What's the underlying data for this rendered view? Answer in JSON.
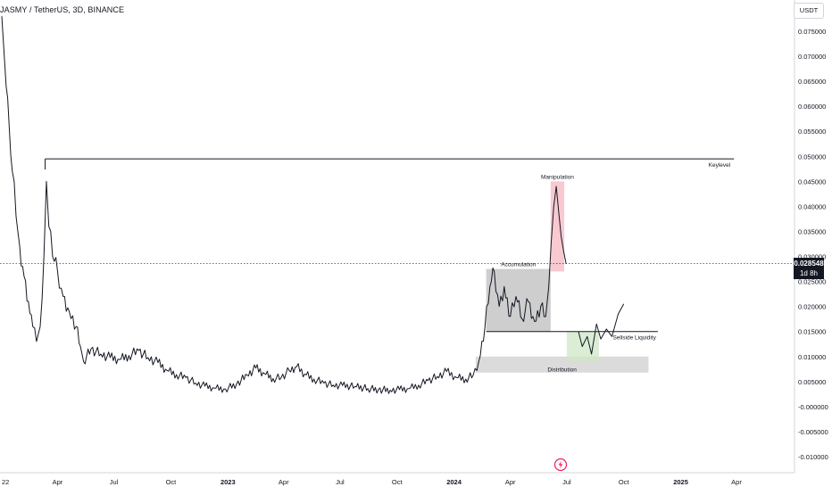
{
  "symbol_title": "JASMY / TetherUS, 3D, BINANCE",
  "currency_button": "USDT",
  "last_price": {
    "value": "0.028548",
    "countdown": "1d 8h"
  },
  "chart_data": {
    "type": "line",
    "title": "JASMY / TetherUS, 3D, BINANCE",
    "xlabel": "",
    "ylabel": "",
    "ylim": [
      -0.0115,
      0.08
    ],
    "y_ticks": [
      "0.075000",
      "0.070000",
      "0.065000",
      "0.060000",
      "0.055000",
      "0.050000",
      "0.045000",
      "0.040000",
      "0.035000",
      "0.030000",
      "0.025000",
      "0.020000",
      "0.015000",
      "0.010000",
      "0.005000",
      "-0.000000",
      "-0.005000",
      "-0.010000"
    ],
    "y_tick_values": [
      0.075,
      0.07,
      0.065,
      0.06,
      0.055,
      0.05,
      0.045,
      0.04,
      0.035,
      0.03,
      0.025,
      0.02,
      0.015,
      0.01,
      0.005,
      0,
      -0.005,
      -0.01
    ],
    "x_ticks": [
      "22",
      "Apr",
      "Jul",
      "Oct",
      "2023",
      "Apr",
      "Jul",
      "Oct",
      "2024",
      "Apr",
      "Jul",
      "Oct",
      "2025",
      "Apr"
    ],
    "x_tick_dates": [
      "2022-01-01",
      "2022-04-01",
      "2022-07-01",
      "2022-10-01",
      "2023-01-01",
      "2023-04-01",
      "2023-07-01",
      "2023-10-01",
      "2024-01-01",
      "2024-04-01",
      "2024-07-01",
      "2024-10-01",
      "2025-01-01",
      "2025-04-01"
    ],
    "series": [
      {
        "points": [
          [
            "2022-01-01",
            0.078
          ],
          [
            "2022-01-04",
            0.072
          ],
          [
            "2022-01-08",
            0.064
          ],
          [
            "2022-01-13",
            0.056
          ],
          [
            "2022-01-18",
            0.047
          ],
          [
            "2022-01-24",
            0.038
          ],
          [
            "2022-01-30",
            0.032
          ],
          [
            "2022-02-06",
            0.026
          ],
          [
            "2022-02-13",
            0.021
          ],
          [
            "2022-02-20",
            0.016
          ],
          [
            "2022-02-26",
            0.013
          ],
          [
            "2022-03-04",
            0.016
          ],
          [
            "2022-03-10",
            0.03
          ],
          [
            "2022-03-14",
            0.045
          ],
          [
            "2022-03-18",
            0.036
          ],
          [
            "2022-03-24",
            0.03
          ],
          [
            "2022-04-01",
            0.027
          ],
          [
            "2022-04-10",
            0.022
          ],
          [
            "2022-04-20",
            0.019
          ],
          [
            "2022-05-01",
            0.016
          ],
          [
            "2022-05-08",
            0.012
          ],
          [
            "2022-05-13",
            0.009
          ],
          [
            "2022-05-25",
            0.0115
          ],
          [
            "2022-06-10",
            0.0105
          ],
          [
            "2022-06-25",
            0.0098
          ],
          [
            "2022-07-10",
            0.0094
          ],
          [
            "2022-07-25",
            0.0102
          ],
          [
            "2022-08-10",
            0.0112
          ],
          [
            "2022-08-25",
            0.0098
          ],
          [
            "2022-09-10",
            0.0088
          ],
          [
            "2022-09-25",
            0.0072
          ],
          [
            "2022-10-10",
            0.0064
          ],
          [
            "2022-10-25",
            0.0058
          ],
          [
            "2022-11-10",
            0.0047
          ],
          [
            "2022-11-25",
            0.0041
          ],
          [
            "2022-12-10",
            0.0037
          ],
          [
            "2022-12-28",
            0.0035
          ],
          [
            "2023-01-15",
            0.0045
          ],
          [
            "2023-02-01",
            0.0063
          ],
          [
            "2023-02-15",
            0.0077
          ],
          [
            "2023-03-01",
            0.0066
          ],
          [
            "2023-03-15",
            0.0056
          ],
          [
            "2023-03-28",
            0.0058
          ],
          [
            "2023-04-10",
            0.0072
          ],
          [
            "2023-04-22",
            0.008
          ],
          [
            "2023-05-05",
            0.0065
          ],
          [
            "2023-05-20",
            0.0055
          ],
          [
            "2023-06-05",
            0.0047
          ],
          [
            "2023-06-20",
            0.0043
          ],
          [
            "2023-07-05",
            0.0042
          ],
          [
            "2023-07-25",
            0.004
          ],
          [
            "2023-08-15",
            0.0036
          ],
          [
            "2023-09-01",
            0.0034
          ],
          [
            "2023-09-20",
            0.0033
          ],
          [
            "2023-10-05",
            0.0034
          ],
          [
            "2023-10-20",
            0.0036
          ],
          [
            "2023-11-05",
            0.0043
          ],
          [
            "2023-11-20",
            0.0052
          ],
          [
            "2023-12-05",
            0.006
          ],
          [
            "2023-12-20",
            0.007
          ],
          [
            "2024-01-05",
            0.0058
          ],
          [
            "2024-01-20",
            0.0055
          ],
          [
            "2024-02-01",
            0.0063
          ],
          [
            "2024-02-10",
            0.009
          ],
          [
            "2024-02-20",
            0.016
          ],
          [
            "2024-02-28",
            0.024
          ],
          [
            "2024-03-06",
            0.027
          ],
          [
            "2024-03-14",
            0.02
          ],
          [
            "2024-03-22",
            0.024
          ],
          [
            "2024-04-01",
            0.018
          ],
          [
            "2024-04-10",
            0.022
          ],
          [
            "2024-04-20",
            0.0175
          ],
          [
            "2024-04-30",
            0.021
          ],
          [
            "2024-05-10",
            0.017
          ],
          [
            "2024-05-20",
            0.02
          ],
          [
            "2024-05-28",
            0.018
          ],
          [
            "2024-06-02",
            0.024
          ],
          [
            "2024-06-06",
            0.033
          ],
          [
            "2024-06-10",
            0.04
          ],
          [
            "2024-06-14",
            0.044
          ],
          [
            "2024-06-18",
            0.039
          ],
          [
            "2024-06-22",
            0.034
          ],
          [
            "2024-06-26",
            0.031
          ],
          [
            "2024-06-30",
            0.0285
          ]
        ]
      }
    ],
    "annotations": [
      {
        "text": "Keylevel",
        "kind": "horizontal-line",
        "price": 0.0495,
        "from": "2022-03-12",
        "to": "2025-03-28"
      },
      {
        "text": "Manipulation",
        "kind": "box",
        "color": "#f5b7c2",
        "x0": "2024-06-05",
        "x1": "2024-06-27",
        "y0": 0.027,
        "y1": 0.045
      },
      {
        "text": "Accumulation",
        "kind": "box",
        "color": "#bdbdbd",
        "x0": "2024-02-22",
        "x1": "2024-06-05",
        "y0": 0.015,
        "y1": 0.0275
      },
      {
        "text": "Sellside Liquidity",
        "kind": "horizontal-line",
        "price": 0.015,
        "from": "2024-02-22",
        "to": "2024-11-25"
      },
      {
        "text": "Distribution",
        "kind": "box",
        "color": "#cfcfcf",
        "x0": "2024-02-05",
        "x1": "2024-11-10",
        "y0": 0.0068,
        "y1": 0.01
      },
      {
        "text": "",
        "kind": "box",
        "color": "#cfe8c7",
        "x0": "2024-07-01",
        "x1": "2024-08-22",
        "y0": 0.009,
        "y1": 0.015
      },
      {
        "text": "",
        "kind": "projection-path",
        "color": "#2e7d32",
        "points": [
          [
            "2024-07-20",
            0.015
          ],
          [
            "2024-07-26",
            0.012
          ],
          [
            "2024-08-03",
            0.014
          ],
          [
            "2024-08-10",
            0.0105
          ],
          [
            "2024-08-18",
            0.0165
          ],
          [
            "2024-08-25",
            0.0135
          ],
          [
            "2024-09-03",
            0.0155
          ],
          [
            "2024-09-12",
            0.014
          ],
          [
            "2024-09-22",
            0.0185
          ],
          [
            "2024-10-01",
            0.0205
          ]
        ]
      }
    ],
    "last_price_line": 0.028548,
    "grid": false,
    "legend": "none"
  }
}
